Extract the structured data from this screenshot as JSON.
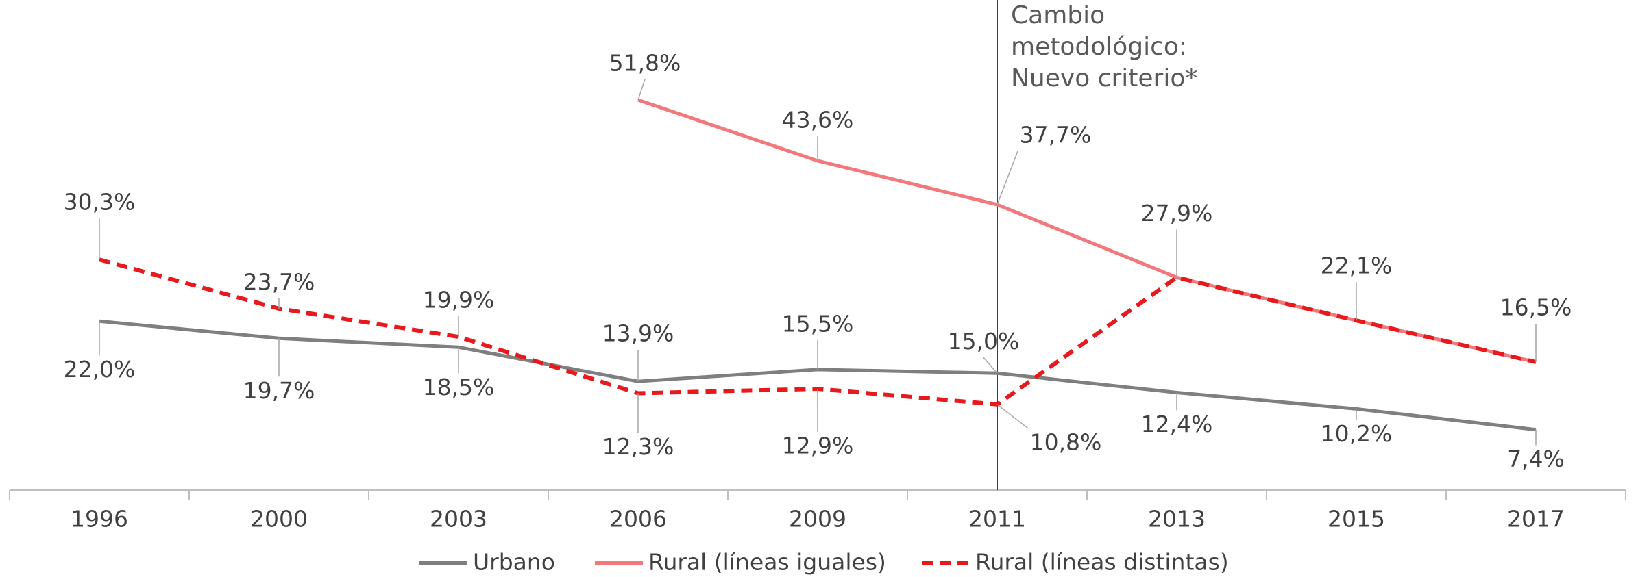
{
  "chart_data": {
    "type": "line",
    "categories": [
      "1996",
      "2000",
      "2003",
      "2006",
      "2009",
      "2011",
      "2013",
      "2015",
      "2017"
    ],
    "series": [
      {
        "name": "Urbano",
        "color": "#7f7f7f",
        "dash": false,
        "values": [
          22.0,
          19.7,
          18.5,
          13.9,
          15.5,
          15.0,
          12.4,
          10.2,
          7.4
        ],
        "value_labels": [
          "22,0%",
          "19,7%",
          "18,5%",
          "13,9%",
          "15,5%",
          "15,0%",
          "12,4%",
          "10,2%",
          "7,4%"
        ]
      },
      {
        "name": "Rural (líneas iguales)",
        "color": "#f4787b",
        "dash": false,
        "values": [
          null,
          null,
          null,
          51.8,
          43.6,
          37.7,
          27.9,
          22.1,
          16.5
        ],
        "value_labels": [
          null,
          null,
          null,
          "51,8%",
          "43,6%",
          "37,7%",
          "27,9%",
          "22,1%",
          "16,5%"
        ]
      },
      {
        "name": "Rural (líneas distintas)",
        "color": "#e8191d",
        "dash": true,
        "values": [
          30.3,
          23.7,
          19.9,
          12.3,
          12.9,
          10.8,
          27.9,
          22.1,
          16.5
        ],
        "value_labels": [
          "30,3%",
          "23,7%",
          "19,9%",
          "12,3%",
          "12,9%",
          "10,8%",
          null,
          null,
          null
        ]
      }
    ],
    "annotation": [
      "Cambio",
      "metodológico:",
      "Nuevo criterio*"
    ],
    "legend": "bottom"
  }
}
